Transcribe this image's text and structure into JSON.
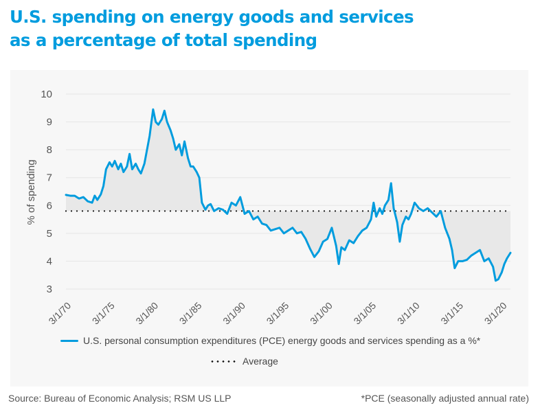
{
  "title_line1": "U.S. spending on energy goods and services",
  "title_line2": "as a percentage of total spending",
  "legend": {
    "series_label": "U.S. personal consumption expenditures (PCE) energy goods and services spending as a %*",
    "average_label": "Average"
  },
  "footer": {
    "source": "Source: Bureau of Economic Analysis; RSM US LLP",
    "note": "*PCE (seasonally adjusted annual rate)"
  },
  "colors": {
    "title": "#009cde",
    "series": "#009cde",
    "average": "#111111",
    "fill": "#e8e8e8"
  },
  "chart_data": {
    "type": "line",
    "title": "U.S. spending on energy goods and services as a percentage of total spending",
    "xlabel": "",
    "ylabel": "% of spending",
    "ylim": [
      3,
      10
    ],
    "yticks": [
      3,
      4,
      5,
      6,
      7,
      8,
      9,
      10
    ],
    "xlim": [
      1970.0,
      2021.0
    ],
    "xticks": [
      {
        "x": 1970.17,
        "label": "3/1/70"
      },
      {
        "x": 1975.17,
        "label": "3/1/75"
      },
      {
        "x": 1980.17,
        "label": "3/1/80"
      },
      {
        "x": 1985.17,
        "label": "3/1/85"
      },
      {
        "x": 1990.17,
        "label": "3/1/90"
      },
      {
        "x": 1995.17,
        "label": "3/1/95"
      },
      {
        "x": 2000.17,
        "label": "3/1/00"
      },
      {
        "x": 2005.17,
        "label": "3/1/05"
      },
      {
        "x": 2010.17,
        "label": "3/1/10"
      },
      {
        "x": 2015.17,
        "label": "3/1/15"
      },
      {
        "x": 2020.17,
        "label": "3/1/20"
      }
    ],
    "grid": true,
    "legend_position": "bottom",
    "average": 5.8,
    "series": [
      {
        "name": "U.S. personal consumption expenditures (PCE) energy goods and services spending as a %*",
        "x": [
          1970.0,
          1970.5,
          1971.0,
          1971.5,
          1972.0,
          1972.5,
          1973.0,
          1973.3,
          1973.6,
          1974.0,
          1974.3,
          1974.6,
          1975.0,
          1975.3,
          1975.6,
          1976.0,
          1976.3,
          1976.6,
          1977.0,
          1977.3,
          1977.6,
          1978.0,
          1978.3,
          1978.6,
          1979.0,
          1979.3,
          1979.6,
          1980.0,
          1980.3,
          1980.6,
          1981.0,
          1981.3,
          1981.6,
          1982.0,
          1982.3,
          1982.6,
          1983.0,
          1983.3,
          1983.6,
          1984.0,
          1984.3,
          1984.6,
          1985.0,
          1985.3,
          1985.6,
          1986.0,
          1986.3,
          1986.6,
          1987.0,
          1987.5,
          1988.0,
          1988.5,
          1989.0,
          1989.5,
          1990.0,
          1990.5,
          1991.0,
          1991.5,
          1992.0,
          1992.5,
          1993.0,
          1993.5,
          1994.0,
          1994.5,
          1995.0,
          1995.5,
          1996.0,
          1996.5,
          1997.0,
          1997.5,
          1998.0,
          1998.5,
          1999.0,
          1999.5,
          2000.0,
          2000.5,
          2001.0,
          2001.3,
          2001.6,
          2002.0,
          2002.5,
          2003.0,
          2003.5,
          2004.0,
          2004.5,
          2005.0,
          2005.3,
          2005.6,
          2006.0,
          2006.3,
          2006.6,
          2007.0,
          2007.3,
          2007.6,
          2008.0,
          2008.3,
          2008.6,
          2009.0,
          2009.3,
          2009.6,
          2010.0,
          2010.5,
          2011.0,
          2011.5,
          2012.0,
          2012.5,
          2013.0,
          2013.5,
          2014.0,
          2014.3,
          2014.6,
          2015.0,
          2015.5,
          2016.0,
          2016.5,
          2017.0,
          2017.5,
          2018.0,
          2018.5,
          2019.0,
          2019.3,
          2019.6,
          2020.0,
          2020.3,
          2020.6,
          2021.0
        ],
        "values": [
          6.38,
          6.35,
          6.35,
          6.25,
          6.3,
          6.15,
          6.1,
          6.35,
          6.2,
          6.4,
          6.7,
          7.3,
          7.55,
          7.4,
          7.6,
          7.3,
          7.5,
          7.2,
          7.4,
          7.85,
          7.3,
          7.5,
          7.3,
          7.15,
          7.5,
          8.0,
          8.5,
          9.45,
          9.0,
          8.9,
          9.1,
          9.4,
          9.0,
          8.7,
          8.4,
          8.0,
          8.2,
          7.8,
          8.3,
          7.7,
          7.4,
          7.4,
          7.2,
          7.0,
          6.1,
          5.85,
          6.0,
          6.05,
          5.8,
          5.9,
          5.85,
          5.7,
          6.1,
          6.0,
          6.3,
          5.7,
          5.8,
          5.5,
          5.6,
          5.35,
          5.3,
          5.1,
          5.15,
          5.2,
          5.0,
          5.1,
          5.2,
          5.0,
          5.05,
          4.8,
          4.45,
          4.15,
          4.35,
          4.7,
          4.8,
          5.2,
          4.55,
          3.9,
          4.5,
          4.4,
          4.75,
          4.65,
          4.9,
          5.1,
          5.2,
          5.5,
          6.1,
          5.6,
          5.9,
          5.7,
          6.0,
          6.2,
          6.8,
          5.9,
          5.4,
          4.7,
          5.3,
          5.6,
          5.5,
          5.7,
          6.1,
          5.9,
          5.8,
          5.9,
          5.75,
          5.6,
          5.8,
          5.2,
          4.8,
          4.4,
          3.75,
          4.0,
          4.0,
          4.05,
          4.2,
          4.3,
          4.4,
          4.0,
          4.1,
          3.8,
          3.3,
          3.35,
          3.6,
          3.9,
          4.1,
          4.3
        ]
      }
    ]
  }
}
